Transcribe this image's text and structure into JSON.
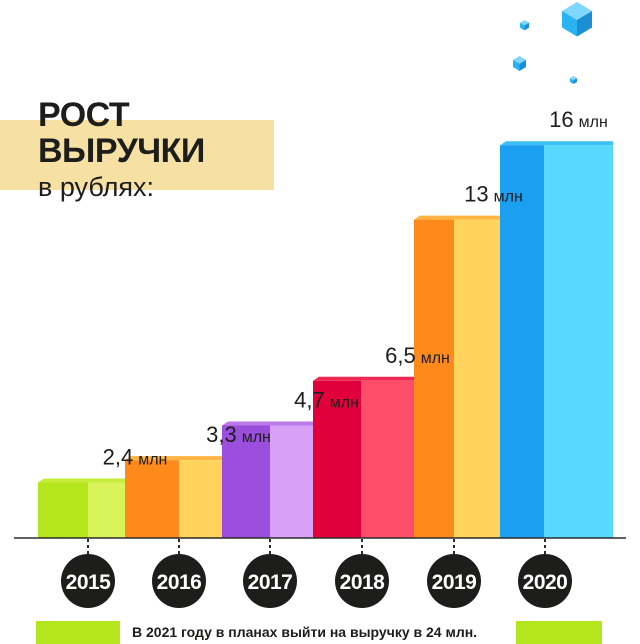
{
  "title": {
    "line1": "РОСТ",
    "line2": "ВЫРУЧКИ",
    "line3": "в рублях:"
  },
  "footnote": "В 2021 году в планах выйти на выручку в 24 млн.",
  "colors": {
    "baseline": "#2b2b2b",
    "year_badge": "#1d1d1b",
    "year_text": "#ffffff",
    "title_band": "#f7e0a3",
    "footnote_bar": "#b5e61d",
    "cube": "#27b4f0"
  },
  "chart_data": {
    "type": "bar",
    "title": "РОСТ ВЫРУЧКИ в рублях:",
    "categories": [
      "2015",
      "2016",
      "2017",
      "2018",
      "2019",
      "2020"
    ],
    "values": [
      2.4,
      3.3,
      4.7,
      6.5,
      13,
      16
    ],
    "value_labels": [
      "2,4 млн",
      "3,3 млн",
      "4,7 млн",
      "6,5 млн",
      "13 млн",
      "16 млн"
    ],
    "unit": "млн",
    "xlabel": "",
    "ylabel": "",
    "ylim": [
      0,
      20
    ],
    "grid": false,
    "legend": "none",
    "bar_colors": [
      {
        "front": "#d8f45a",
        "side": "#b5e61d",
        "top": "#c6ec3c"
      },
      {
        "front": "#ffd35c",
        "side": "#ff8a1c",
        "top": "#ffb340"
      },
      {
        "front": "#d9a0f7",
        "side": "#9b4fdc",
        "top": "#bb79ea"
      },
      {
        "front": "#ff4e6a",
        "side": "#e2003c",
        "top": "#f02751"
      },
      {
        "front": "#ffd35c",
        "side": "#ff8a1c",
        "top": "#ffb340"
      },
      {
        "front": "#56d8ff",
        "side": "#1b9ff0",
        "top": "#3cbff7"
      }
    ]
  }
}
